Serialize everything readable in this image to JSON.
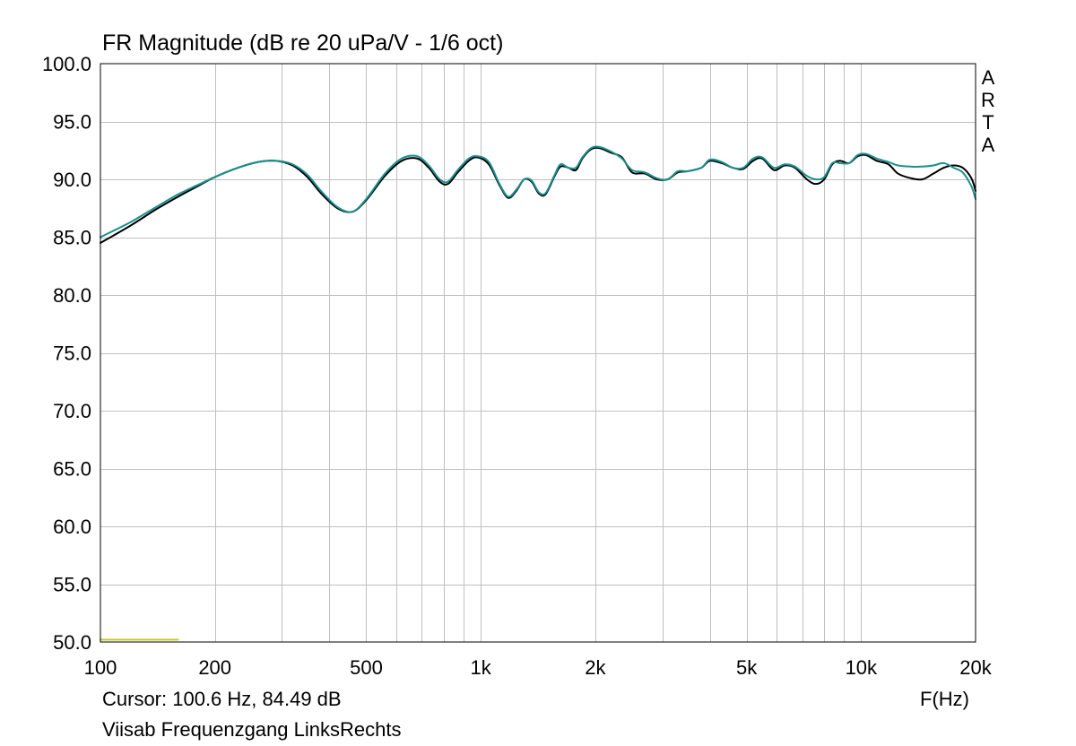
{
  "chart": {
    "title": "FR Magnitude (dB re 20 uPa/V - 1/6 oct)",
    "cursor_text": "Cursor: 100.6 Hz, 84.49 dB",
    "x_unit_label": "F(Hz)",
    "subtitle": "Viisab Frequenzgang LinksRechts",
    "brand_letters": [
      "A",
      "R",
      "T",
      "A"
    ]
  },
  "chart_data": {
    "type": "line",
    "title": "FR Magnitude (dB re 20 uPa/V - 1/6 oct)",
    "xlabel": "F(Hz)",
    "ylabel": "",
    "x_scale": "log",
    "xlim": [
      100,
      20000
    ],
    "ylim": [
      50,
      100
    ],
    "grid": true,
    "x_tick_labels": [
      {
        "value": 100,
        "label": "100"
      },
      {
        "value": 200,
        "label": "200"
      },
      {
        "value": 500,
        "label": "500"
      },
      {
        "value": 1000,
        "label": "1k"
      },
      {
        "value": 2000,
        "label": "2k"
      },
      {
        "value": 5000,
        "label": "5k"
      },
      {
        "value": 10000,
        "label": "10k"
      },
      {
        "value": 20000,
        "label": "20k"
      }
    ],
    "x_minor_gridlines": [
      300,
      400,
      600,
      700,
      800,
      900,
      3000,
      4000,
      6000,
      7000,
      8000,
      9000
    ],
    "y_ticks": [
      {
        "value": 50,
        "label": "50.0"
      },
      {
        "value": 55,
        "label": "55.0"
      },
      {
        "value": 60,
        "label": "60.0"
      },
      {
        "value": 65,
        "label": "65.0"
      },
      {
        "value": 70,
        "label": "70.0"
      },
      {
        "value": 75,
        "label": "75.0"
      },
      {
        "value": 80,
        "label": "80.0"
      },
      {
        "value": 85,
        "label": "85.0"
      },
      {
        "value": 90,
        "label": "90.0"
      },
      {
        "value": 95,
        "label": "95.0"
      },
      {
        "value": 100,
        "label": "100.0"
      }
    ],
    "colors": {
      "grid": "#c0c0c0",
      "frame": "#000000",
      "marker": "#c8c832"
    },
    "series": [
      {
        "color": "#000000",
        "points": [
          [
            100,
            84.5
          ],
          [
            120,
            86.0
          ],
          [
            140,
            87.4
          ],
          [
            160,
            88.5
          ],
          [
            180,
            89.4
          ],
          [
            200,
            90.2
          ],
          [
            230,
            91.0
          ],
          [
            260,
            91.5
          ],
          [
            290,
            91.6
          ],
          [
            320,
            91.2
          ],
          [
            350,
            90.2
          ],
          [
            380,
            88.8
          ],
          [
            420,
            87.5
          ],
          [
            460,
            87.2
          ],
          [
            500,
            88.2
          ],
          [
            560,
            90.3
          ],
          [
            620,
            91.6
          ],
          [
            680,
            91.8
          ],
          [
            730,
            91.0
          ],
          [
            780,
            89.8
          ],
          [
            820,
            89.6
          ],
          [
            870,
            90.6
          ],
          [
            930,
            91.6
          ],
          [
            980,
            91.9
          ],
          [
            1050,
            91.3
          ],
          [
            1120,
            89.5
          ],
          [
            1180,
            88.4
          ],
          [
            1240,
            89.0
          ],
          [
            1300,
            90.0
          ],
          [
            1360,
            89.8
          ],
          [
            1420,
            88.8
          ],
          [
            1480,
            88.7
          ],
          [
            1560,
            90.2
          ],
          [
            1620,
            91.1
          ],
          [
            1700,
            91.0
          ],
          [
            1780,
            90.8
          ],
          [
            1850,
            91.8
          ],
          [
            1950,
            92.6
          ],
          [
            2050,
            92.7
          ],
          [
            2200,
            92.3
          ],
          [
            2350,
            91.9
          ],
          [
            2500,
            90.6
          ],
          [
            2700,
            90.5
          ],
          [
            2900,
            90.0
          ],
          [
            3100,
            90.0
          ],
          [
            3300,
            90.6
          ],
          [
            3500,
            90.7
          ],
          [
            3800,
            91.0
          ],
          [
            4000,
            91.6
          ],
          [
            4300,
            91.4
          ],
          [
            4600,
            91.0
          ],
          [
            4900,
            90.9
          ],
          [
            5200,
            91.6
          ],
          [
            5500,
            91.8
          ],
          [
            5900,
            90.8
          ],
          [
            6300,
            91.2
          ],
          [
            6700,
            91.0
          ],
          [
            7200,
            90.0
          ],
          [
            7600,
            89.6
          ],
          [
            8000,
            90.0
          ],
          [
            8400,
            91.3
          ],
          [
            8800,
            91.6
          ],
          [
            9300,
            91.4
          ],
          [
            9800,
            92.0
          ],
          [
            10300,
            92.1
          ],
          [
            11000,
            91.6
          ],
          [
            11800,
            91.3
          ],
          [
            12500,
            90.5
          ],
          [
            13500,
            90.1
          ],
          [
            14500,
            90.0
          ],
          [
            15500,
            90.5
          ],
          [
            16500,
            91.0
          ],
          [
            17500,
            91.2
          ],
          [
            18500,
            91.0
          ],
          [
            19500,
            90.1
          ],
          [
            20000,
            89.0
          ]
        ]
      },
      {
        "color": "#1a9090",
        "points": [
          [
            100,
            85.0
          ],
          [
            120,
            86.3
          ],
          [
            140,
            87.6
          ],
          [
            160,
            88.7
          ],
          [
            180,
            89.5
          ],
          [
            200,
            90.2
          ],
          [
            230,
            91.0
          ],
          [
            260,
            91.5
          ],
          [
            290,
            91.6
          ],
          [
            320,
            91.3
          ],
          [
            350,
            90.4
          ],
          [
            380,
            89.0
          ],
          [
            420,
            87.6
          ],
          [
            460,
            87.2
          ],
          [
            500,
            88.3
          ],
          [
            560,
            90.5
          ],
          [
            620,
            91.8
          ],
          [
            680,
            92.0
          ],
          [
            730,
            91.2
          ],
          [
            780,
            90.0
          ],
          [
            820,
            89.8
          ],
          [
            870,
            90.8
          ],
          [
            930,
            91.8
          ],
          [
            980,
            92.0
          ],
          [
            1050,
            91.5
          ],
          [
            1120,
            89.6
          ],
          [
            1180,
            88.5
          ],
          [
            1240,
            89.1
          ],
          [
            1300,
            90.0
          ],
          [
            1360,
            89.9
          ],
          [
            1420,
            88.9
          ],
          [
            1480,
            88.8
          ],
          [
            1560,
            90.3
          ],
          [
            1620,
            91.3
          ],
          [
            1700,
            91.0
          ],
          [
            1780,
            91.0
          ],
          [
            1850,
            91.9
          ],
          [
            1950,
            92.7
          ],
          [
            2050,
            92.8
          ],
          [
            2200,
            92.4
          ],
          [
            2350,
            91.8
          ],
          [
            2500,
            90.8
          ],
          [
            2700,
            90.6
          ],
          [
            2900,
            90.1
          ],
          [
            3100,
            90.0
          ],
          [
            3300,
            90.7
          ],
          [
            3500,
            90.7
          ],
          [
            3800,
            91.0
          ],
          [
            4000,
            91.7
          ],
          [
            4300,
            91.5
          ],
          [
            4600,
            91.0
          ],
          [
            4900,
            91.0
          ],
          [
            5200,
            91.8
          ],
          [
            5500,
            91.9
          ],
          [
            5900,
            91.0
          ],
          [
            6300,
            91.3
          ],
          [
            6700,
            91.1
          ],
          [
            7200,
            90.3
          ],
          [
            7600,
            90.0
          ],
          [
            8000,
            90.2
          ],
          [
            8400,
            91.4
          ],
          [
            8800,
            91.4
          ],
          [
            9300,
            91.4
          ],
          [
            9800,
            92.1
          ],
          [
            10300,
            92.2
          ],
          [
            11000,
            91.8
          ],
          [
            11800,
            91.5
          ],
          [
            12500,
            91.2
          ],
          [
            13500,
            91.1
          ],
          [
            14500,
            91.1
          ],
          [
            15500,
            91.2
          ],
          [
            16500,
            91.4
          ],
          [
            17500,
            91.0
          ],
          [
            18500,
            90.6
          ],
          [
            19500,
            89.4
          ],
          [
            20000,
            88.3
          ]
        ]
      },
      {
        "color": "#c8c832",
        "points": [
          [
            100,
            50.2
          ],
          [
            160,
            50.2
          ]
        ]
      }
    ]
  }
}
